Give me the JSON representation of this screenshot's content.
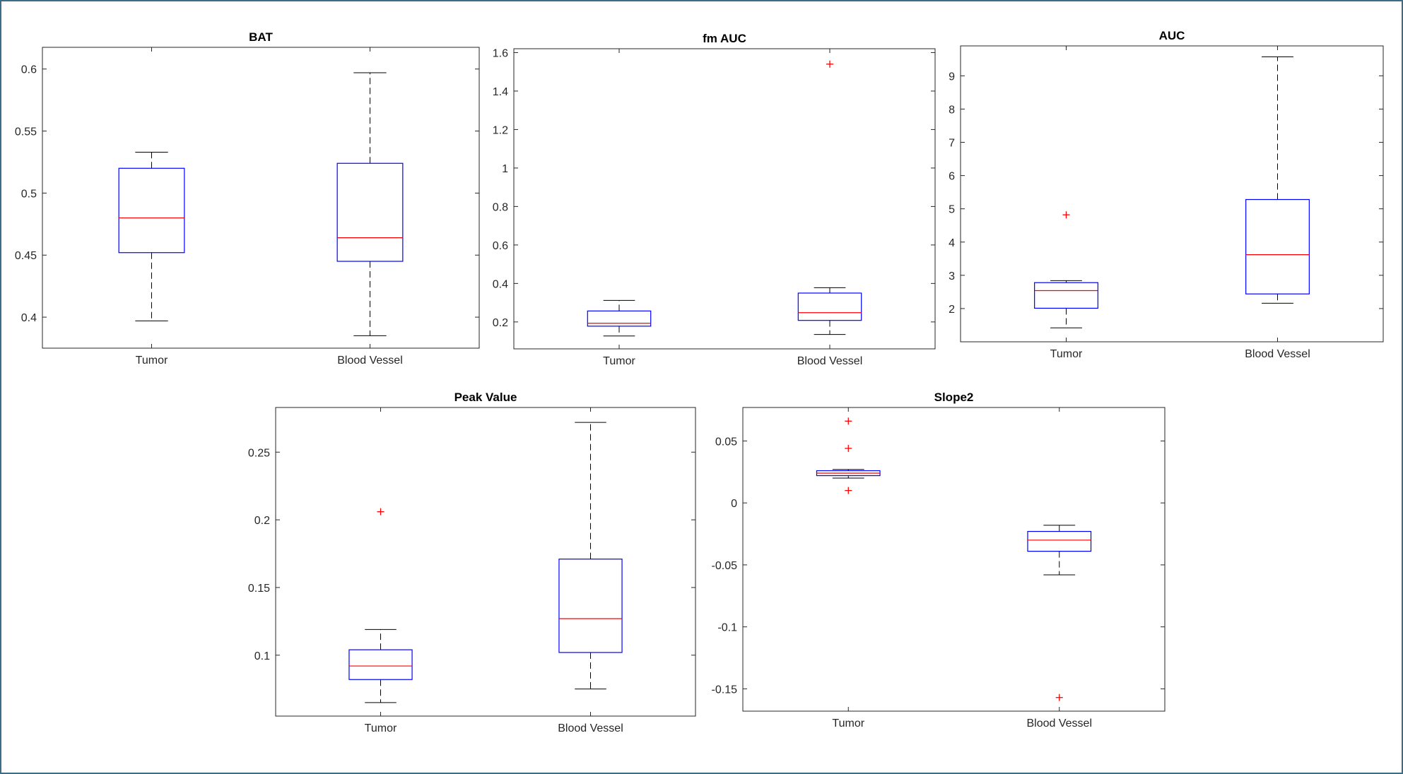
{
  "figure": {
    "colors": {
      "box": "#0000ff",
      "median": "#ff0000",
      "outlier": "#ff0000",
      "whisker": "#000000",
      "axes": "#262626",
      "frame": "#3d6c86"
    }
  },
  "chart_data": [
    {
      "type": "boxplot",
      "title": "BAT",
      "categories": [
        "Tumor",
        "Blood Vessel"
      ],
      "ylim": [
        0.375,
        0.6175
      ],
      "yticks": [
        0.4,
        0.45,
        0.5,
        0.55,
        0.6
      ],
      "ytick_labels": [
        "0.4",
        "0.45",
        "0.5",
        "0.55",
        "0.6"
      ],
      "boxes": [
        {
          "name": "Tumor",
          "whisker_low": 0.397,
          "q1": 0.452,
          "median": 0.48,
          "q3": 0.52,
          "whisker_high": 0.533,
          "outliers": []
        },
        {
          "name": "Blood Vessel",
          "whisker_low": 0.385,
          "q1": 0.445,
          "median": 0.464,
          "q3": 0.524,
          "whisker_high": 0.597,
          "outliers": []
        }
      ]
    },
    {
      "type": "boxplot",
      "title": "fm AUC",
      "categories": [
        "Tumor",
        "Blood Vessel"
      ],
      "ylim": [
        0.06,
        1.62
      ],
      "yticks": [
        0.2,
        0.4,
        0.6,
        0.8,
        1.0,
        1.2,
        1.4,
        1.6
      ],
      "ytick_labels": [
        "0.2",
        "0.4",
        "0.6",
        "0.8",
        "1",
        "1.2",
        "1.4",
        "1.6"
      ],
      "boxes": [
        {
          "name": "Tumor",
          "whisker_low": 0.127,
          "q1": 0.178,
          "median": 0.193,
          "q3": 0.257,
          "whisker_high": 0.312,
          "outliers": []
        },
        {
          "name": "Blood Vessel",
          "whisker_low": 0.135,
          "q1": 0.208,
          "median": 0.248,
          "q3": 0.35,
          "whisker_high": 0.378,
          "outliers": [
            1.54
          ]
        }
      ]
    },
    {
      "type": "boxplot",
      "title": "AUC",
      "categories": [
        "Tumor",
        "Blood Vessel"
      ],
      "ylim": [
        1.0,
        9.9
      ],
      "yticks": [
        2,
        3,
        4,
        5,
        6,
        7,
        8,
        9
      ],
      "ytick_labels": [
        "2",
        "3",
        "4",
        "5",
        "6",
        "7",
        "8",
        "9"
      ],
      "boxes": [
        {
          "name": "Tumor",
          "whisker_low": 1.42,
          "q1": 2.01,
          "median": 2.54,
          "q3": 2.78,
          "whisker_high": 2.84,
          "outliers": [
            4.82
          ]
        },
        {
          "name": "Blood Vessel",
          "whisker_low": 2.16,
          "q1": 2.44,
          "median": 3.62,
          "q3": 5.28,
          "whisker_high": 9.57,
          "outliers": []
        }
      ]
    },
    {
      "type": "boxplot",
      "title": "Peak Value",
      "categories": [
        "Tumor",
        "Blood Vessel"
      ],
      "ylim": [
        0.055,
        0.283
      ],
      "yticks": [
        0.1,
        0.15,
        0.2,
        0.25
      ],
      "ytick_labels": [
        "0.1",
        "0.15",
        "0.2",
        "0.25"
      ],
      "boxes": [
        {
          "name": "Tumor",
          "whisker_low": 0.065,
          "q1": 0.082,
          "median": 0.092,
          "q3": 0.104,
          "whisker_high": 0.119,
          "outliers": [
            0.206
          ]
        },
        {
          "name": "Blood Vessel",
          "whisker_low": 0.075,
          "q1": 0.102,
          "median": 0.127,
          "q3": 0.171,
          "whisker_high": 0.272,
          "outliers": []
        }
      ]
    },
    {
      "type": "boxplot",
      "title": "Slope2",
      "categories": [
        "Tumor",
        "Blood Vessel"
      ],
      "ylim": [
        -0.168,
        0.077
      ],
      "yticks": [
        -0.15,
        -0.1,
        -0.05,
        0,
        0.05
      ],
      "ytick_labels": [
        "-0.15",
        "-0.1",
        "-0.05",
        "0",
        "0.05"
      ],
      "boxes": [
        {
          "name": "Tumor",
          "whisker_low": 0.02,
          "q1": 0.022,
          "median": 0.024,
          "q3": 0.026,
          "whisker_high": 0.027,
          "outliers": [
            0.066,
            0.044,
            0.01
          ]
        },
        {
          "name": "Blood Vessel",
          "whisker_low": -0.058,
          "q1": -0.039,
          "median": -0.03,
          "q3": -0.023,
          "whisker_high": -0.018,
          "outliers": [
            -0.157
          ]
        }
      ]
    }
  ]
}
